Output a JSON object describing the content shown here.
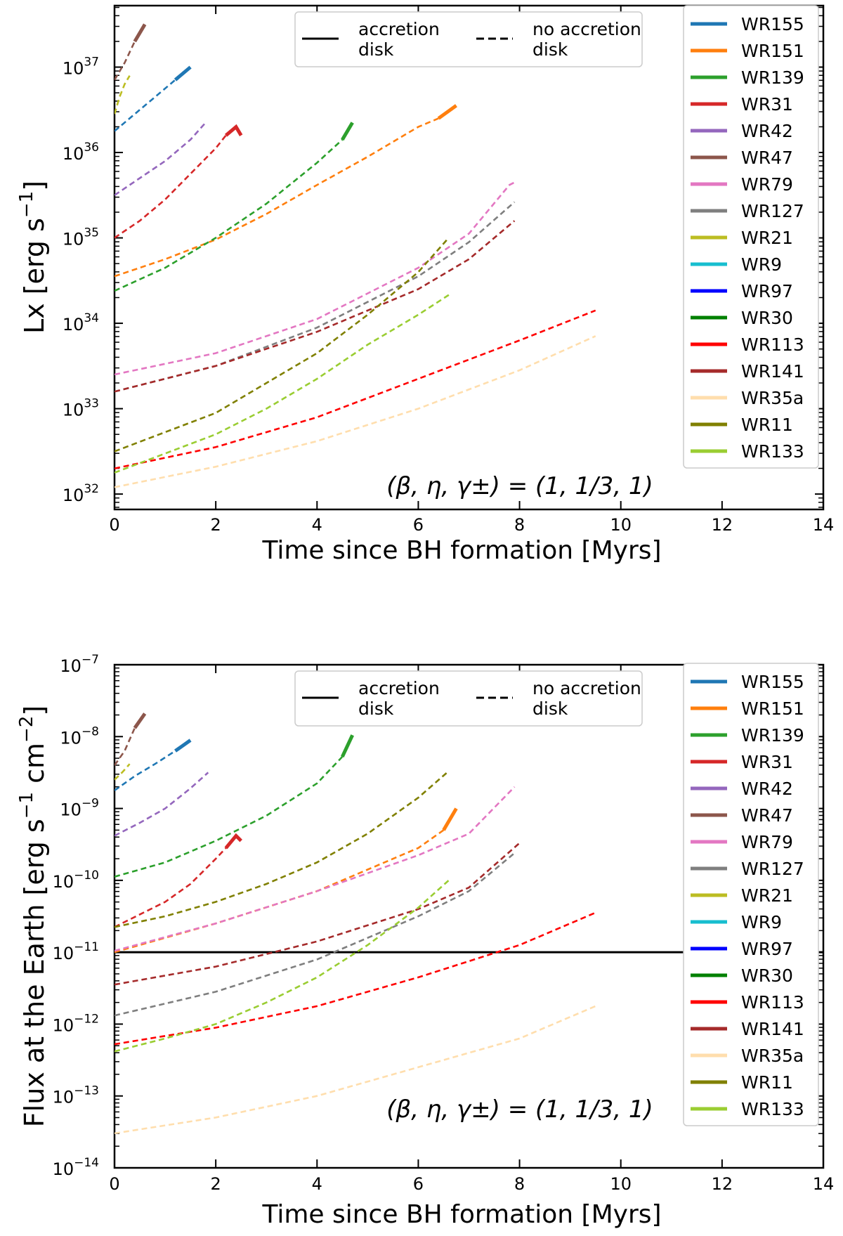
{
  "chart_data": [
    {
      "type": "line",
      "ylabel_main": "Lx [erg s",
      "ylabel_sup": "−1",
      "ylabel_end": "]",
      "xlabel": "Time since BH formation [Myrs]",
      "xlim": [
        0,
        14
      ],
      "ylim_log10": [
        31.82,
        37.72
      ],
      "yscale": "log",
      "xticks": [
        "0",
        "2",
        "4",
        "6",
        "8",
        "10",
        "12",
        "14"
      ],
      "yticks": [
        {
          "base": "10",
          "exp": "32",
          "v": 32
        },
        {
          "base": "10",
          "exp": "33",
          "v": 33
        },
        {
          "base": "10",
          "exp": "34",
          "v": 34
        },
        {
          "base": "10",
          "exp": "35",
          "v": 35
        },
        {
          "base": "10",
          "exp": "36",
          "v": 36
        },
        {
          "base": "10",
          "exp": "37",
          "v": 37
        }
      ],
      "annotation": "(β, η, γ±) = (1, 1/3, 1)",
      "style_legend": [
        {
          "label1": "accretion",
          "label2": "disk",
          "style": "solid"
        },
        {
          "label1": "no accretion",
          "label2": "disk",
          "style": "dashed"
        }
      ],
      "legend_position": "upper-right",
      "series": [
        {
          "name": "WR155",
          "color": "#1f77b4",
          "points": [
            [
              0,
              36.25
            ],
            [
              0.4,
              36.45
            ],
            [
              0.8,
              36.65
            ],
            [
              1.2,
              36.85
            ]
          ],
          "solid_points": [
            [
              1.2,
              36.85
            ],
            [
              1.5,
              37.0
            ]
          ]
        },
        {
          "name": "WR151",
          "color": "#ff7f0e",
          "points": [
            [
              0,
              34.55
            ],
            [
              1,
              34.75
            ],
            [
              2,
              34.98
            ],
            [
              3,
              35.28
            ],
            [
              4,
              35.62
            ],
            [
              5,
              35.95
            ],
            [
              6,
              36.3
            ],
            [
              6.4,
              36.4
            ]
          ],
          "solid_points": [
            [
              6.4,
              36.4
            ],
            [
              6.75,
              36.55
            ]
          ]
        },
        {
          "name": "WR139",
          "color": "#2ca02c",
          "points": [
            [
              0,
              34.38
            ],
            [
              1,
              34.65
            ],
            [
              2,
              35.0
            ],
            [
              3,
              35.4
            ],
            [
              4,
              35.88
            ],
            [
              4.5,
              36.15
            ]
          ],
          "solid_points": [
            [
              4.5,
              36.15
            ],
            [
              4.7,
              36.35
            ]
          ]
        },
        {
          "name": "WR31",
          "color": "#d62728",
          "points": [
            [
              0,
              35.0
            ],
            [
              0.5,
              35.2
            ],
            [
              1,
              35.45
            ],
            [
              1.5,
              35.75
            ],
            [
              2,
              36.05
            ],
            [
              2.2,
              36.2
            ]
          ],
          "solid_points": [
            [
              2.2,
              36.2
            ],
            [
              2.4,
              36.3
            ],
            [
              2.5,
              36.2
            ]
          ]
        },
        {
          "name": "WR42",
          "color": "#9467bd",
          "points": [
            [
              0,
              35.5
            ],
            [
              0.5,
              35.7
            ],
            [
              1,
              35.9
            ],
            [
              1.5,
              36.15
            ],
            [
              1.8,
              36.35
            ]
          ],
          "solid_points": []
        },
        {
          "name": "WR47",
          "color": "#8c564b",
          "points": [
            [
              0,
              36.85
            ],
            [
              0.2,
              37.05
            ],
            [
              0.4,
              37.3
            ]
          ],
          "solid_points": [
            [
              0.4,
              37.3
            ],
            [
              0.6,
              37.5
            ]
          ]
        },
        {
          "name": "WR79",
          "color": "#e377c2",
          "points": [
            [
              0,
              33.4
            ],
            [
              2,
              33.65
            ],
            [
              4,
              34.05
            ],
            [
              6,
              34.65
            ],
            [
              7,
              35.05
            ],
            [
              7.8,
              35.62
            ],
            [
              7.9,
              35.65
            ]
          ],
          "solid_points": []
        },
        {
          "name": "WR127",
          "color": "#7f7f7f",
          "points": [
            [
              0,
              33.2
            ],
            [
              2,
              33.5
            ],
            [
              4,
              33.95
            ],
            [
              6,
              34.55
            ],
            [
              7,
              34.95
            ],
            [
              7.9,
              35.42
            ]
          ],
          "solid_points": []
        },
        {
          "name": "WR21",
          "color": "#bcbd22",
          "points": [
            [
              0,
              36.45
            ],
            [
              0.1,
              36.65
            ],
            [
              0.2,
              36.8
            ],
            [
              0.3,
              36.9
            ]
          ],
          "solid_points": []
        },
        {
          "name": "WR9",
          "color": "#17becf",
          "points": [],
          "solid_points": []
        },
        {
          "name": "WR97",
          "color": "#0000ff",
          "points": [],
          "solid_points": []
        },
        {
          "name": "WR30",
          "color": "#008000",
          "points": [],
          "solid_points": []
        },
        {
          "name": "WR113",
          "color": "#ff0000",
          "points": [
            [
              0,
              32.3
            ],
            [
              2,
              32.55
            ],
            [
              4,
              32.9
            ],
            [
              6,
              33.35
            ],
            [
              8,
              33.8
            ],
            [
              9.5,
              34.15
            ]
          ],
          "solid_points": []
        },
        {
          "name": "WR141",
          "color": "#a52a2a",
          "points": [
            [
              0,
              33.2
            ],
            [
              2,
              33.5
            ],
            [
              4,
              33.9
            ],
            [
              6,
              34.4
            ],
            [
              7,
              34.75
            ],
            [
              7.9,
              35.2
            ]
          ],
          "solid_points": []
        },
        {
          "name": "WR35a",
          "color": "#ffdead",
          "points": [
            [
              0,
              32.08
            ],
            [
              2,
              32.32
            ],
            [
              4,
              32.62
            ],
            [
              6,
              33.0
            ],
            [
              8,
              33.45
            ],
            [
              9.5,
              33.85
            ]
          ],
          "solid_points": []
        },
        {
          "name": "WR11",
          "color": "#808000",
          "points": [
            [
              0,
              32.5
            ],
            [
              2,
              32.95
            ],
            [
              3,
              33.3
            ],
            [
              4,
              33.65
            ],
            [
              5,
              34.1
            ],
            [
              6,
              34.6
            ],
            [
              6.6,
              35.0
            ]
          ],
          "solid_points": []
        },
        {
          "name": "WR133",
          "color": "#9acd32",
          "points": [
            [
              0,
              32.25
            ],
            [
              2,
              32.7
            ],
            [
              3,
              33.0
            ],
            [
              4,
              33.35
            ],
            [
              5,
              33.75
            ],
            [
              6,
              34.1
            ],
            [
              6.65,
              34.35
            ]
          ],
          "solid_points": []
        }
      ]
    },
    {
      "type": "line",
      "ylabel_main": "Flux at the Earth [erg s",
      "ylabel_sup": "−1",
      "ylabel_mid": " cm",
      "ylabel_sup2": "−2",
      "ylabel_end": "]",
      "xlabel": "Time since BH formation [Myrs]",
      "xlim": [
        0,
        14
      ],
      "ylim_log10": [
        -14,
        -7
      ],
      "yscale": "log",
      "xticks": [
        "0",
        "2",
        "4",
        "6",
        "8",
        "10",
        "12",
        "14"
      ],
      "yticks": [
        {
          "base": "10",
          "exp": "−14",
          "v": -14
        },
        {
          "base": "10",
          "exp": "−13",
          "v": -13
        },
        {
          "base": "10",
          "exp": "−12",
          "v": -12
        },
        {
          "base": "10",
          "exp": "−11",
          "v": -11
        },
        {
          "base": "10",
          "exp": "−10",
          "v": -10
        },
        {
          "base": "10",
          "exp": "−9",
          "v": -9
        },
        {
          "base": "10",
          "exp": "−8",
          "v": -8
        },
        {
          "base": "10",
          "exp": "−7",
          "v": -7
        }
      ],
      "annotation": "(β, η, γ±) = (1, 1/3, 1)",
      "hline": -11,
      "style_legend": [
        {
          "label1": "accretion",
          "label2": "disk",
          "style": "solid"
        },
        {
          "label1": "no accretion",
          "label2": "disk",
          "style": "dashed"
        }
      ],
      "legend_position": "upper-right",
      "series": [
        {
          "name": "WR155",
          "color": "#1f77b4",
          "points": [
            [
              0,
              -8.75
            ],
            [
              0.4,
              -8.55
            ],
            [
              0.8,
              -8.38
            ],
            [
              1.2,
              -8.2
            ]
          ],
          "solid_points": [
            [
              1.2,
              -8.2
            ],
            [
              1.5,
              -8.05
            ]
          ]
        },
        {
          "name": "WR151",
          "color": "#ff7f0e",
          "points": [
            [
              0,
              -11.0
            ],
            [
              2,
              -10.6
            ],
            [
              4,
              -10.15
            ],
            [
              5,
              -9.85
            ],
            [
              6,
              -9.55
            ],
            [
              6.5,
              -9.3
            ]
          ],
          "solid_points": [
            [
              6.5,
              -9.3
            ],
            [
              6.75,
              -9.0
            ]
          ]
        },
        {
          "name": "WR139",
          "color": "#2ca02c",
          "points": [
            [
              0,
              -9.95
            ],
            [
              1,
              -9.75
            ],
            [
              2,
              -9.45
            ],
            [
              3,
              -9.1
            ],
            [
              4,
              -8.65
            ],
            [
              4.5,
              -8.28
            ]
          ],
          "solid_points": [
            [
              4.5,
              -8.28
            ],
            [
              4.7,
              -7.98
            ]
          ]
        },
        {
          "name": "WR31",
          "color": "#d62728",
          "points": [
            [
              0,
              -10.65
            ],
            [
              1,
              -10.3
            ],
            [
              1.5,
              -10.05
            ],
            [
              2,
              -9.7
            ],
            [
              2.2,
              -9.55
            ]
          ],
          "solid_points": [
            [
              2.2,
              -9.55
            ],
            [
              2.4,
              -9.38
            ],
            [
              2.5,
              -9.45
            ]
          ]
        },
        {
          "name": "WR42",
          "color": "#9467bd",
          "points": [
            [
              0,
              -9.38
            ],
            [
              0.5,
              -9.2
            ],
            [
              1,
              -9.0
            ],
            [
              1.5,
              -8.72
            ],
            [
              1.85,
              -8.5
            ]
          ],
          "solid_points": []
        },
        {
          "name": "WR47",
          "color": "#8c564b",
          "points": [
            [
              0,
              -8.4
            ],
            [
              0.2,
              -8.2
            ],
            [
              0.4,
              -7.88
            ]
          ],
          "solid_points": [
            [
              0.4,
              -7.88
            ],
            [
              0.6,
              -7.68
            ]
          ]
        },
        {
          "name": "WR79",
          "color": "#e377c2",
          "points": [
            [
              0,
              -10.98
            ],
            [
              2,
              -10.6
            ],
            [
              4,
              -10.15
            ],
            [
              6,
              -9.65
            ],
            [
              7,
              -9.35
            ],
            [
              7.9,
              -8.7
            ]
          ],
          "solid_points": []
        },
        {
          "name": "WR127",
          "color": "#7f7f7f",
          "points": [
            [
              0,
              -11.88
            ],
            [
              2,
              -11.55
            ],
            [
              4,
              -11.1
            ],
            [
              6,
              -10.5
            ],
            [
              7,
              -10.15
            ],
            [
              7.9,
              -9.62
            ]
          ],
          "solid_points": []
        },
        {
          "name": "WR21",
          "color": "#bcbd22",
          "points": [
            [
              0,
              -8.6
            ],
            [
              0.15,
              -8.5
            ],
            [
              0.3,
              -8.38
            ]
          ],
          "solid_points": []
        },
        {
          "name": "WR9",
          "color": "#17becf",
          "points": [],
          "solid_points": []
        },
        {
          "name": "WR97",
          "color": "#0000ff",
          "points": [],
          "solid_points": []
        },
        {
          "name": "WR30",
          "color": "#008000",
          "points": [],
          "solid_points": []
        },
        {
          "name": "WR113",
          "color": "#ff0000",
          "points": [
            [
              0,
              -12.28
            ],
            [
              2,
              -12.05
            ],
            [
              4,
              -11.75
            ],
            [
              6,
              -11.35
            ],
            [
              8,
              -10.9
            ],
            [
              9.5,
              -10.45
            ]
          ],
          "solid_points": []
        },
        {
          "name": "WR141",
          "color": "#a52a2a",
          "points": [
            [
              0,
              -11.45
            ],
            [
              2,
              -11.2
            ],
            [
              4,
              -10.85
            ],
            [
              6,
              -10.4
            ],
            [
              7,
              -10.1
            ],
            [
              8,
              -9.48
            ]
          ],
          "solid_points": []
        },
        {
          "name": "WR35a",
          "color": "#ffdead",
          "points": [
            [
              0,
              -13.52
            ],
            [
              2,
              -13.3
            ],
            [
              4,
              -13.0
            ],
            [
              6,
              -12.6
            ],
            [
              8,
              -12.2
            ],
            [
              9.5,
              -11.75
            ]
          ],
          "solid_points": []
        },
        {
          "name": "WR11",
          "color": "#808000",
          "points": [
            [
              0,
              -10.65
            ],
            [
              1,
              -10.5
            ],
            [
              2,
              -10.3
            ],
            [
              3,
              -10.05
            ],
            [
              4,
              -9.75
            ],
            [
              5,
              -9.35
            ],
            [
              6,
              -8.85
            ],
            [
              6.6,
              -8.48
            ]
          ],
          "solid_points": []
        },
        {
          "name": "WR133",
          "color": "#9acd32",
          "points": [
            [
              0,
              -12.38
            ],
            [
              1,
              -12.2
            ],
            [
              2,
              -12.0
            ],
            [
              3,
              -11.7
            ],
            [
              4,
              -11.35
            ],
            [
              5,
              -10.9
            ],
            [
              6,
              -10.38
            ],
            [
              6.6,
              -10.0
            ]
          ],
          "solid_points": []
        }
      ]
    }
  ]
}
